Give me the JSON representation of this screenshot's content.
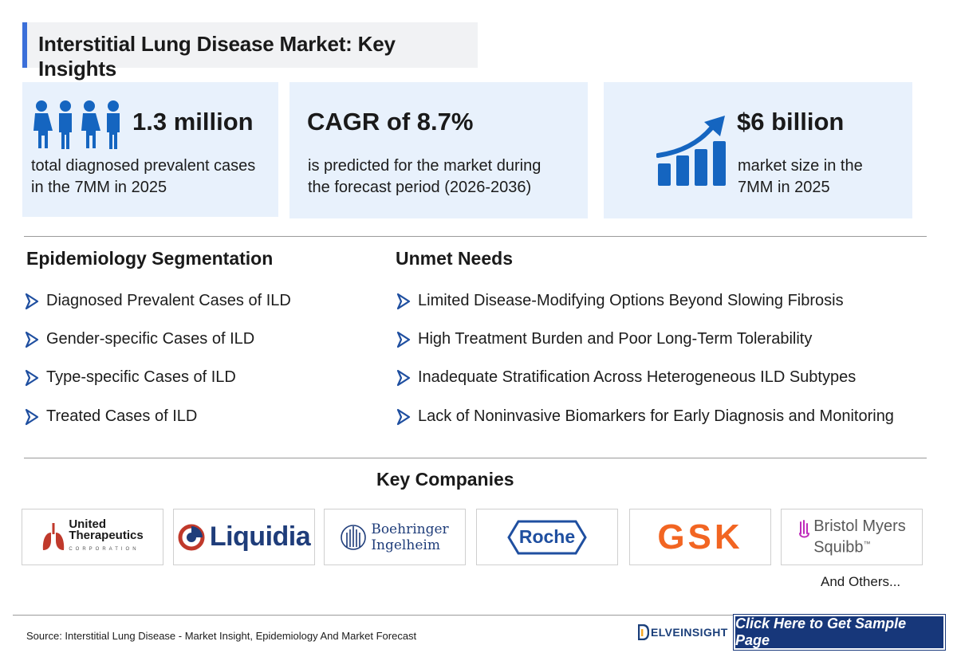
{
  "title": "Interstitial Lung Disease Market: Key Insights",
  "stats": [
    {
      "value": "1.3 million",
      "line1": "total diagnosed prevalent cases",
      "line2": "in the 7MM in 2025",
      "icon": "people-icon"
    },
    {
      "value": "CAGR of 8.7%",
      "line1": "is predicted for the market during",
      "line2": "the forecast period (2026-2036)",
      "icon": ""
    },
    {
      "value": "$6 billion",
      "line1": "market size in the",
      "line2": "7MM in 2025",
      "icon": "growth-chart-icon"
    }
  ],
  "epidemiology": {
    "title": "Epidemiology Segmentation",
    "items": [
      "Diagnosed Prevalent Cases of ILD",
      "Gender-specific Cases of ILD",
      "Type-specific Cases of ILD",
      "Treated Cases of ILD"
    ]
  },
  "unmet_needs": {
    "title": "Unmet Needs",
    "items": [
      "Limited Disease-Modifying Options Beyond Slowing Fibrosis",
      "High Treatment Burden and Poor Long-Term Tolerability",
      "Inadequate Stratification Across Heterogeneous ILD Subtypes",
      "Lack of Noninvasive Biomarkers for Early Diagnosis and Monitoring"
    ]
  },
  "companies": {
    "title": "Key Companies",
    "logos": [
      {
        "line1": "United",
        "line2": "Therapeutics",
        "line3": "CORPORATION"
      },
      {
        "name": "Liquidia"
      },
      {
        "line1": "Boehringer",
        "line2": "Ingelheim"
      },
      {
        "name": "Roche"
      },
      {
        "name": "GSK"
      },
      {
        "line1": "Bristol Myers",
        "line2": "Squibb",
        "tm": "™"
      }
    ],
    "others": "And Others..."
  },
  "footer": {
    "source": "Source: Interstitial Lung Disease - Market Insight, Epidemiology And Market Forecast",
    "brand": "ELVEINSIGHT",
    "cta": "Click Here to Get Sample Page"
  },
  "colors": {
    "accent": "#3b6fd9",
    "card_bg": "#e8f1fc",
    "icon_blue": "#1565c0",
    "cta_bg": "#17377a",
    "chevron": "#1f4fa0"
  }
}
